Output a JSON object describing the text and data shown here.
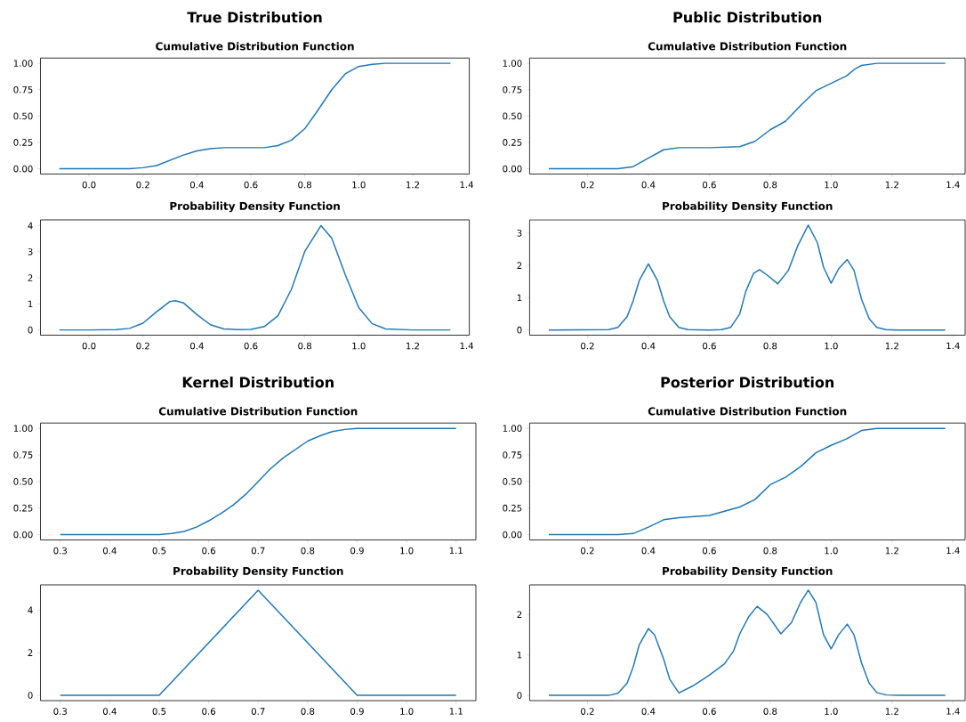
{
  "chart_data": [
    {
      "type": "line",
      "title": "True Distribution",
      "subtitle": "Cumulative Distribution Function",
      "color": "#1f77b4",
      "x": [
        -0.11,
        0.0,
        0.1,
        0.15,
        0.2,
        0.25,
        0.3,
        0.35,
        0.4,
        0.45,
        0.5,
        0.55,
        0.6,
        0.65,
        0.7,
        0.75,
        0.8,
        0.85,
        0.9,
        0.95,
        1.0,
        1.05,
        1.1,
        1.2,
        1.34
      ],
      "values": [
        0,
        0,
        0,
        0,
        0.01,
        0.03,
        0.08,
        0.13,
        0.17,
        0.19,
        0.2,
        0.2,
        0.2,
        0.2,
        0.22,
        0.27,
        0.38,
        0.56,
        0.75,
        0.9,
        0.97,
        0.99,
        1.0,
        1.0,
        1.0
      ],
      "xlim": [
        -0.18,
        1.41
      ],
      "ylim": [
        -0.05,
        1.05
      ],
      "xticks": [
        {
          "value": 0,
          "label": "0.0"
        },
        {
          "value": 0.2,
          "label": "0.2"
        },
        {
          "value": 0.4,
          "label": "0.4"
        },
        {
          "value": 0.6,
          "label": "0.6"
        },
        {
          "value": 0.8,
          "label": "0.8"
        },
        {
          "value": 1,
          "label": "1.0"
        },
        {
          "value": 1.2,
          "label": "1.2"
        },
        {
          "value": 1.4,
          "label": "1.4"
        }
      ],
      "yticks": [
        {
          "value": 0,
          "label": "0.00"
        },
        {
          "value": 0.25,
          "label": "0.25"
        },
        {
          "value": 0.5,
          "label": "0.50"
        },
        {
          "value": 0.75,
          "label": "0.75"
        },
        {
          "value": 1,
          "label": "1.00"
        }
      ]
    },
    {
      "type": "line",
      "title": "Public Distribution",
      "subtitle": "Cumulative Distribution Function",
      "color": "#1f77b4",
      "x": [
        0.073,
        0.3,
        0.35,
        0.4,
        0.45,
        0.5,
        0.6,
        0.7,
        0.75,
        0.8,
        0.85,
        0.9,
        0.95,
        1.0,
        1.05,
        1.08,
        1.1,
        1.15,
        1.375
      ],
      "values": [
        0,
        0,
        0.02,
        0.1,
        0.18,
        0.2,
        0.2,
        0.21,
        0.26,
        0.37,
        0.45,
        0.6,
        0.74,
        0.81,
        0.88,
        0.95,
        0.98,
        1.0,
        1.0
      ],
      "xlim": [
        0.01,
        1.44
      ],
      "ylim": [
        -0.05,
        1.05
      ],
      "xticks": [
        {
          "value": 0.2,
          "label": "0.2"
        },
        {
          "value": 0.4,
          "label": "0.4"
        },
        {
          "value": 0.6,
          "label": "0.6"
        },
        {
          "value": 0.8,
          "label": "0.8"
        },
        {
          "value": 1,
          "label": "1.0"
        },
        {
          "value": 1.2,
          "label": "1.2"
        },
        {
          "value": 1.4,
          "label": "1.4"
        }
      ],
      "yticks": [
        {
          "value": 0,
          "label": "0.00"
        },
        {
          "value": 0.25,
          "label": "0.25"
        },
        {
          "value": 0.5,
          "label": "0.50"
        },
        {
          "value": 0.75,
          "label": "0.75"
        },
        {
          "value": 1,
          "label": "1.00"
        }
      ]
    },
    {
      "type": "line",
      "title": "Probability Density Function",
      "color": "#1f77b4",
      "x": [
        -0.11,
        0.0,
        0.1,
        0.15,
        0.2,
        0.25,
        0.3,
        0.32,
        0.35,
        0.4,
        0.45,
        0.5,
        0.55,
        0.6,
        0.65,
        0.7,
        0.75,
        0.8,
        0.86,
        0.9,
        0.95,
        1.0,
        1.05,
        1.1,
        1.2,
        1.34
      ],
      "values": [
        0,
        0,
        0.01,
        0.06,
        0.26,
        0.69,
        1.09,
        1.12,
        1.04,
        0.59,
        0.2,
        0.04,
        0.01,
        0.02,
        0.13,
        0.54,
        1.55,
        3.01,
        4.0,
        3.52,
        2.12,
        0.86,
        0.24,
        0.04,
        0,
        0
      ],
      "xlim": [
        -0.18,
        1.41
      ],
      "ylim": [
        -0.2,
        4.22
      ],
      "xticks": [
        {
          "value": 0,
          "label": "0.0"
        },
        {
          "value": 0.2,
          "label": "0.2"
        },
        {
          "value": 0.4,
          "label": "0.4"
        },
        {
          "value": 0.6,
          "label": "0.6"
        },
        {
          "value": 0.8,
          "label": "0.8"
        },
        {
          "value": 1,
          "label": "1.0"
        },
        {
          "value": 1.2,
          "label": "1.2"
        },
        {
          "value": 1.4,
          "label": "1.4"
        }
      ],
      "yticks": [
        0,
        1,
        2,
        3,
        4
      ]
    },
    {
      "type": "line",
      "title": "Probability Density Function",
      "color": "#1f77b4",
      "x": [
        0.073,
        0.27,
        0.3,
        0.33,
        0.35,
        0.37,
        0.4,
        0.43,
        0.45,
        0.47,
        0.5,
        0.53,
        0.6,
        0.64,
        0.67,
        0.7,
        0.72,
        0.745,
        0.765,
        0.79,
        0.825,
        0.86,
        0.89,
        0.925,
        0.955,
        0.975,
        1.0,
        1.025,
        1.053,
        1.075,
        1.1,
        1.125,
        1.15,
        1.18,
        1.22,
        1.375
      ],
      "values": [
        0,
        0.01,
        0.08,
        0.41,
        0.9,
        1.53,
        2.05,
        1.53,
        0.9,
        0.41,
        0.08,
        0.01,
        0,
        0.01,
        0.08,
        0.5,
        1.2,
        1.75,
        1.87,
        1.7,
        1.43,
        1.85,
        2.6,
        3.25,
        2.7,
        1.95,
        1.45,
        1.9,
        2.18,
        1.85,
        0.95,
        0.35,
        0.08,
        0.01,
        0,
        0
      ],
      "xlim": [
        0.01,
        1.44
      ],
      "ylim": [
        -0.16,
        3.41
      ],
      "xticks": [
        {
          "value": 0.2,
          "label": "0.2"
        },
        {
          "value": 0.4,
          "label": "0.4"
        },
        {
          "value": 0.6,
          "label": "0.6"
        },
        {
          "value": 0.8,
          "label": "0.8"
        },
        {
          "value": 1,
          "label": "1.0"
        },
        {
          "value": 1.2,
          "label": "1.2"
        },
        {
          "value": 1.4,
          "label": "1.4"
        }
      ],
      "yticks": [
        0,
        1,
        2,
        3
      ]
    },
    {
      "type": "line",
      "title": "Kernel Distribution",
      "subtitle": "Cumulative Distribution Function",
      "color": "#1f77b4",
      "x": [
        0.3,
        0.5,
        0.525,
        0.55,
        0.575,
        0.6,
        0.625,
        0.65,
        0.675,
        0.7,
        0.725,
        0.75,
        0.775,
        0.8,
        0.825,
        0.85,
        0.875,
        0.9,
        1.1
      ],
      "values": [
        0,
        0,
        0.01,
        0.03,
        0.07,
        0.13,
        0.2,
        0.28,
        0.38,
        0.5,
        0.62,
        0.72,
        0.8,
        0.88,
        0.93,
        0.97,
        0.99,
        1.0,
        1.0
      ],
      "xlim": [
        0.26,
        1.14
      ],
      "ylim": [
        -0.05,
        1.05
      ],
      "xticks": [
        {
          "value": 0.3,
          "label": "0.3"
        },
        {
          "value": 0.4,
          "label": "0.4"
        },
        {
          "value": 0.5,
          "label": "0.5"
        },
        {
          "value": 0.6,
          "label": "0.6"
        },
        {
          "value": 0.7,
          "label": "0.7"
        },
        {
          "value": 0.8,
          "label": "0.8"
        },
        {
          "value": 0.9,
          "label": "0.9"
        },
        {
          "value": 1,
          "label": "1.0"
        },
        {
          "value": 1.1,
          "label": "1.1"
        }
      ],
      "yticks": [
        {
          "value": 0,
          "label": "0.00"
        },
        {
          "value": 0.25,
          "label": "0.25"
        },
        {
          "value": 0.5,
          "label": "0.50"
        },
        {
          "value": 0.75,
          "label": "0.75"
        },
        {
          "value": 1,
          "label": "1.00"
        }
      ]
    },
    {
      "type": "line",
      "title": "Posterior Distribution",
      "subtitle": "Cumulative Distribution Function",
      "color": "#1f77b4",
      "x": [
        0.073,
        0.3,
        0.35,
        0.4,
        0.45,
        0.5,
        0.6,
        0.7,
        0.75,
        0.8,
        0.85,
        0.9,
        0.95,
        1.0,
        1.05,
        1.1,
        1.15,
        1.375
      ],
      "values": [
        0,
        0,
        0.01,
        0.07,
        0.14,
        0.16,
        0.18,
        0.26,
        0.33,
        0.47,
        0.54,
        0.64,
        0.77,
        0.84,
        0.9,
        0.98,
        1.0,
        1.0
      ],
      "xlim": [
        0.01,
        1.44
      ],
      "ylim": [
        -0.05,
        1.05
      ],
      "xticks": [
        {
          "value": 0.2,
          "label": "0.2"
        },
        {
          "value": 0.4,
          "label": "0.4"
        },
        {
          "value": 0.6,
          "label": "0.6"
        },
        {
          "value": 0.8,
          "label": "0.8"
        },
        {
          "value": 1,
          "label": "1.0"
        },
        {
          "value": 1.2,
          "label": "1.2"
        },
        {
          "value": 1.4,
          "label": "1.4"
        }
      ],
      "yticks": [
        {
          "value": 0,
          "label": "0.00"
        },
        {
          "value": 0.25,
          "label": "0.25"
        },
        {
          "value": 0.5,
          "label": "0.50"
        },
        {
          "value": 0.75,
          "label": "0.75"
        },
        {
          "value": 1,
          "label": "1.00"
        }
      ]
    },
    {
      "type": "line",
      "title": "Probability Density Function",
      "color": "#1f77b4",
      "x": [
        0.3,
        0.5,
        0.7,
        0.9,
        1.1
      ],
      "values": [
        0,
        0,
        4.93,
        0,
        0
      ],
      "xlim": [
        0.26,
        1.14
      ],
      "ylim": [
        -0.25,
        5.18
      ],
      "xticks": [
        {
          "value": 0.3,
          "label": "0.3"
        },
        {
          "value": 0.4,
          "label": "0.4"
        },
        {
          "value": 0.5,
          "label": "0.5"
        },
        {
          "value": 0.6,
          "label": "0.6"
        },
        {
          "value": 0.7,
          "label": "0.7"
        },
        {
          "value": 0.8,
          "label": "0.8"
        },
        {
          "value": 0.9,
          "label": "0.9"
        },
        {
          "value": 1,
          "label": "1.0"
        },
        {
          "value": 1.1,
          "label": "1.1"
        }
      ],
      "yticks": [
        0,
        2,
        4
      ]
    },
    {
      "type": "line",
      "title": "Probability Density Function",
      "color": "#1f77b4",
      "x": [
        0.073,
        0.27,
        0.3,
        0.33,
        0.35,
        0.37,
        0.4,
        0.42,
        0.45,
        0.47,
        0.5,
        0.55,
        0.6,
        0.65,
        0.68,
        0.7,
        0.73,
        0.757,
        0.79,
        0.835,
        0.87,
        0.9,
        0.925,
        0.95,
        0.975,
        1.0,
        1.025,
        1.053,
        1.075,
        1.1,
        1.125,
        1.15,
        1.18,
        1.22,
        1.375
      ],
      "values": [
        0,
        0,
        0.05,
        0.3,
        0.7,
        1.25,
        1.65,
        1.5,
        0.9,
        0.4,
        0.06,
        0.25,
        0.5,
        0.78,
        1.1,
        1.52,
        1.95,
        2.2,
        2.0,
        1.52,
        1.8,
        2.3,
        2.6,
        2.3,
        1.5,
        1.15,
        1.5,
        1.76,
        1.5,
        0.8,
        0.3,
        0.07,
        0.01,
        0,
        0
      ],
      "xlim": [
        0.01,
        1.44
      ],
      "ylim": [
        -0.13,
        2.73
      ],
      "xticks": [
        {
          "value": 0.2,
          "label": "0.2"
        },
        {
          "value": 0.4,
          "label": "0.4"
        },
        {
          "value": 0.6,
          "label": "0.6"
        },
        {
          "value": 0.8,
          "label": "0.8"
        },
        {
          "value": 1,
          "label": "1.0"
        },
        {
          "value": 1.2,
          "label": "1.2"
        },
        {
          "value": 1.4,
          "label": "1.4"
        }
      ],
      "yticks": [
        0,
        1,
        2
      ]
    }
  ]
}
